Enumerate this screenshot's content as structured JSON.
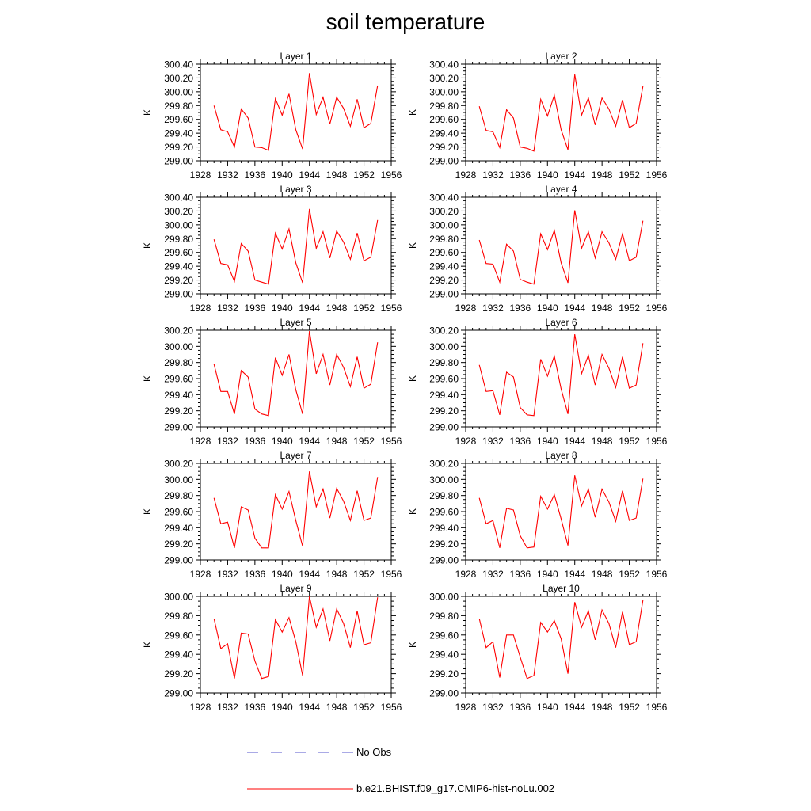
{
  "title": "soil temperature",
  "ylabel": "K",
  "legend": [
    {
      "label": "No Obs",
      "color": "#5555cc",
      "dash": true
    },
    {
      "label": "b.e21.BHIST.f09_g17.CMIP6-hist-noLu.002",
      "color": "#ff0000",
      "dash": false
    }
  ],
  "colors": {
    "series": "#ff0000",
    "axis": "#000000"
  },
  "chart_data": [
    {
      "type": "line",
      "title": "Layer 1",
      "ylabel": "K",
      "xlim": [
        1928,
        1956
      ],
      "xticks": [
        1928,
        1932,
        1936,
        1940,
        1944,
        1948,
        1952,
        1956
      ],
      "ylim": [
        299.0,
        300.4
      ],
      "yticks": [
        "299.00",
        "299.20",
        "299.40",
        "299.60",
        "299.80",
        "300.00",
        "300.20",
        "300.40"
      ],
      "x": [
        1930,
        1931,
        1932,
        1933,
        1934,
        1935,
        1936,
        1937,
        1938,
        1939,
        1940,
        1941,
        1942,
        1943,
        1944,
        1945,
        1946,
        1947,
        1948,
        1949,
        1950,
        1951,
        1952,
        1953,
        1954
      ],
      "values": [
        299.8,
        299.45,
        299.42,
        299.2,
        299.75,
        299.62,
        299.2,
        299.19,
        299.15,
        299.9,
        299.66,
        299.97,
        299.45,
        299.17,
        300.27,
        299.67,
        299.92,
        299.53,
        299.92,
        299.76,
        299.5,
        299.89,
        299.48,
        299.54,
        300.09
      ]
    },
    {
      "type": "line",
      "title": "Layer 2",
      "ylabel": "K",
      "xlim": [
        1928,
        1956
      ],
      "xticks": [
        1928,
        1932,
        1936,
        1940,
        1944,
        1948,
        1952,
        1956
      ],
      "ylim": [
        299.0,
        300.4
      ],
      "yticks": [
        "299.00",
        "299.20",
        "299.40",
        "299.60",
        "299.80",
        "300.00",
        "300.20",
        "300.40"
      ],
      "x": [
        1930,
        1931,
        1932,
        1933,
        1934,
        1935,
        1936,
        1937,
        1938,
        1939,
        1940,
        1941,
        1942,
        1943,
        1944,
        1945,
        1946,
        1947,
        1948,
        1949,
        1950,
        1951,
        1952,
        1953,
        1954
      ],
      "values": [
        299.79,
        299.44,
        299.42,
        299.19,
        299.74,
        299.62,
        299.2,
        299.18,
        299.14,
        299.89,
        299.65,
        299.95,
        299.45,
        299.16,
        300.25,
        299.66,
        299.91,
        299.52,
        299.91,
        299.75,
        299.5,
        299.88,
        299.48,
        299.54,
        300.08
      ]
    },
    {
      "type": "line",
      "title": "Layer 3",
      "ylabel": "K",
      "xlim": [
        1928,
        1956
      ],
      "xticks": [
        1928,
        1932,
        1936,
        1940,
        1944,
        1948,
        1952,
        1956
      ],
      "ylim": [
        299.0,
        300.4
      ],
      "yticks": [
        "299.00",
        "299.20",
        "299.40",
        "299.60",
        "299.80",
        "300.00",
        "300.20",
        "300.40"
      ],
      "x": [
        1930,
        1931,
        1932,
        1933,
        1934,
        1935,
        1936,
        1937,
        1938,
        1939,
        1940,
        1941,
        1942,
        1943,
        1944,
        1945,
        1946,
        1947,
        1948,
        1949,
        1950,
        1951,
        1952,
        1953,
        1954
      ],
      "values": [
        299.79,
        299.44,
        299.42,
        299.18,
        299.73,
        299.62,
        299.2,
        299.17,
        299.14,
        299.88,
        299.65,
        299.94,
        299.45,
        299.16,
        300.23,
        299.66,
        299.9,
        299.52,
        299.91,
        299.75,
        299.5,
        299.88,
        299.48,
        299.53,
        300.07
      ]
    },
    {
      "type": "line",
      "title": "Layer 4",
      "ylabel": "K",
      "xlim": [
        1928,
        1956
      ],
      "xticks": [
        1928,
        1932,
        1936,
        1940,
        1944,
        1948,
        1952,
        1956
      ],
      "ylim": [
        299.0,
        300.4
      ],
      "yticks": [
        "299.00",
        "299.20",
        "299.40",
        "299.60",
        "299.80",
        "300.00",
        "300.20",
        "300.40"
      ],
      "x": [
        1930,
        1931,
        1932,
        1933,
        1934,
        1935,
        1936,
        1937,
        1938,
        1939,
        1940,
        1941,
        1942,
        1943,
        1944,
        1945,
        1946,
        1947,
        1948,
        1949,
        1950,
        1951,
        1952,
        1953,
        1954
      ],
      "values": [
        299.78,
        299.44,
        299.43,
        299.17,
        299.72,
        299.62,
        299.21,
        299.17,
        299.14,
        299.87,
        299.64,
        299.92,
        299.45,
        299.16,
        300.21,
        299.66,
        299.9,
        299.52,
        299.9,
        299.74,
        299.5,
        299.87,
        299.48,
        299.53,
        300.06
      ]
    },
    {
      "type": "line",
      "title": "Layer 5",
      "ylabel": "K",
      "xlim": [
        1928,
        1956
      ],
      "xticks": [
        1928,
        1932,
        1936,
        1940,
        1944,
        1948,
        1952,
        1956
      ],
      "ylim": [
        299.0,
        300.2
      ],
      "yticks": [
        "299.00",
        "299.20",
        "299.40",
        "299.60",
        "299.80",
        "300.00",
        "300.20"
      ],
      "x": [
        1930,
        1931,
        1932,
        1933,
        1934,
        1935,
        1936,
        1937,
        1938,
        1939,
        1940,
        1941,
        1942,
        1943,
        1944,
        1945,
        1946,
        1947,
        1948,
        1949,
        1950,
        1951,
        1952,
        1953,
        1954
      ],
      "values": [
        299.78,
        299.44,
        299.44,
        299.16,
        299.7,
        299.62,
        299.22,
        299.16,
        299.14,
        299.86,
        299.64,
        299.9,
        299.46,
        299.16,
        300.19,
        299.66,
        299.9,
        299.52,
        299.9,
        299.74,
        299.5,
        299.87,
        299.48,
        299.53,
        300.05
      ]
    },
    {
      "type": "line",
      "title": "Layer 6",
      "ylabel": "K",
      "xlim": [
        1928,
        1956
      ],
      "xticks": [
        1928,
        1932,
        1936,
        1940,
        1944,
        1948,
        1952,
        1956
      ],
      "ylim": [
        299.0,
        300.2
      ],
      "yticks": [
        "299.00",
        "299.20",
        "299.40",
        "299.60",
        "299.80",
        "300.00",
        "300.20"
      ],
      "x": [
        1930,
        1931,
        1932,
        1933,
        1934,
        1935,
        1936,
        1937,
        1938,
        1939,
        1940,
        1941,
        1942,
        1943,
        1944,
        1945,
        1946,
        1947,
        1948,
        1949,
        1950,
        1951,
        1952,
        1953,
        1954
      ],
      "values": [
        299.77,
        299.44,
        299.45,
        299.15,
        299.68,
        299.62,
        299.24,
        299.15,
        299.14,
        299.84,
        299.63,
        299.88,
        299.47,
        299.16,
        300.15,
        299.66,
        299.89,
        299.52,
        299.9,
        299.73,
        299.49,
        299.87,
        299.48,
        299.52,
        300.04
      ]
    },
    {
      "type": "line",
      "title": "Layer 7",
      "ylabel": "K",
      "xlim": [
        1928,
        1956
      ],
      "xticks": [
        1928,
        1932,
        1936,
        1940,
        1944,
        1948,
        1952,
        1956
      ],
      "ylim": [
        299.0,
        300.2
      ],
      "yticks": [
        "299.00",
        "299.20",
        "299.40",
        "299.60",
        "299.80",
        "300.00",
        "300.20"
      ],
      "x": [
        1930,
        1931,
        1932,
        1933,
        1934,
        1935,
        1936,
        1937,
        1938,
        1939,
        1940,
        1941,
        1942,
        1943,
        1944,
        1945,
        1946,
        1947,
        1948,
        1949,
        1950,
        1951,
        1952,
        1953,
        1954
      ],
      "values": [
        299.77,
        299.45,
        299.47,
        299.15,
        299.66,
        299.62,
        299.27,
        299.15,
        299.15,
        299.81,
        299.63,
        299.85,
        299.49,
        299.17,
        300.1,
        299.66,
        299.88,
        299.52,
        299.89,
        299.73,
        299.49,
        299.86,
        299.49,
        299.52,
        300.03
      ]
    },
    {
      "type": "line",
      "title": "Layer 8",
      "ylabel": "K",
      "xlim": [
        1928,
        1956
      ],
      "xticks": [
        1928,
        1932,
        1936,
        1940,
        1944,
        1948,
        1952,
        1956
      ],
      "ylim": [
        299.0,
        300.2
      ],
      "yticks": [
        "299.00",
        "299.20",
        "299.40",
        "299.60",
        "299.80",
        "300.00",
        "300.20"
      ],
      "x": [
        1930,
        1931,
        1932,
        1933,
        1934,
        1935,
        1936,
        1937,
        1938,
        1939,
        1940,
        1941,
        1942,
        1943,
        1944,
        1945,
        1946,
        1947,
        1948,
        1949,
        1950,
        1951,
        1952,
        1953,
        1954
      ],
      "values": [
        299.77,
        299.45,
        299.49,
        299.15,
        299.64,
        299.62,
        299.3,
        299.15,
        299.16,
        299.79,
        299.63,
        299.81,
        299.51,
        299.18,
        300.05,
        299.67,
        299.88,
        299.53,
        299.88,
        299.72,
        299.48,
        299.86,
        299.49,
        299.52,
        300.01
      ]
    },
    {
      "type": "line",
      "title": "Layer 9",
      "ylabel": "K",
      "xlim": [
        1928,
        1956
      ],
      "xticks": [
        1928,
        1932,
        1936,
        1940,
        1944,
        1948,
        1952,
        1956
      ],
      "ylim": [
        299.0,
        300.0
      ],
      "yticks": [
        "299.00",
        "299.20",
        "299.40",
        "299.60",
        "299.80",
        "300.00"
      ],
      "x": [
        1930,
        1931,
        1932,
        1933,
        1934,
        1935,
        1936,
        1937,
        1938,
        1939,
        1940,
        1941,
        1942,
        1943,
        1944,
        1945,
        1946,
        1947,
        1948,
        1949,
        1950,
        1951,
        1952,
        1953,
        1954
      ],
      "values": [
        299.77,
        299.46,
        299.51,
        299.15,
        299.62,
        299.61,
        299.33,
        299.15,
        299.17,
        299.76,
        299.63,
        299.78,
        299.53,
        299.18,
        300.0,
        299.68,
        299.87,
        299.54,
        299.87,
        299.72,
        299.47,
        299.85,
        299.5,
        299.52,
        299.99
      ]
    },
    {
      "type": "line",
      "title": "Layer 10",
      "ylabel": "K",
      "xlim": [
        1928,
        1956
      ],
      "xticks": [
        1928,
        1932,
        1936,
        1940,
        1944,
        1948,
        1952,
        1956
      ],
      "ylim": [
        299.0,
        300.0
      ],
      "yticks": [
        "299.00",
        "299.20",
        "299.40",
        "299.60",
        "299.80",
        "300.00"
      ],
      "x": [
        1930,
        1931,
        1932,
        1933,
        1934,
        1935,
        1936,
        1937,
        1938,
        1939,
        1940,
        1941,
        1942,
        1943,
        1944,
        1945,
        1946,
        1947,
        1948,
        1949,
        1950,
        1951,
        1952,
        1953,
        1954
      ],
      "values": [
        299.77,
        299.47,
        299.53,
        299.16,
        299.6,
        299.6,
        299.37,
        299.15,
        299.18,
        299.73,
        299.63,
        299.75,
        299.56,
        299.2,
        299.94,
        299.68,
        299.85,
        299.55,
        299.86,
        299.72,
        299.47,
        299.84,
        299.5,
        299.53,
        299.96
      ]
    }
  ]
}
